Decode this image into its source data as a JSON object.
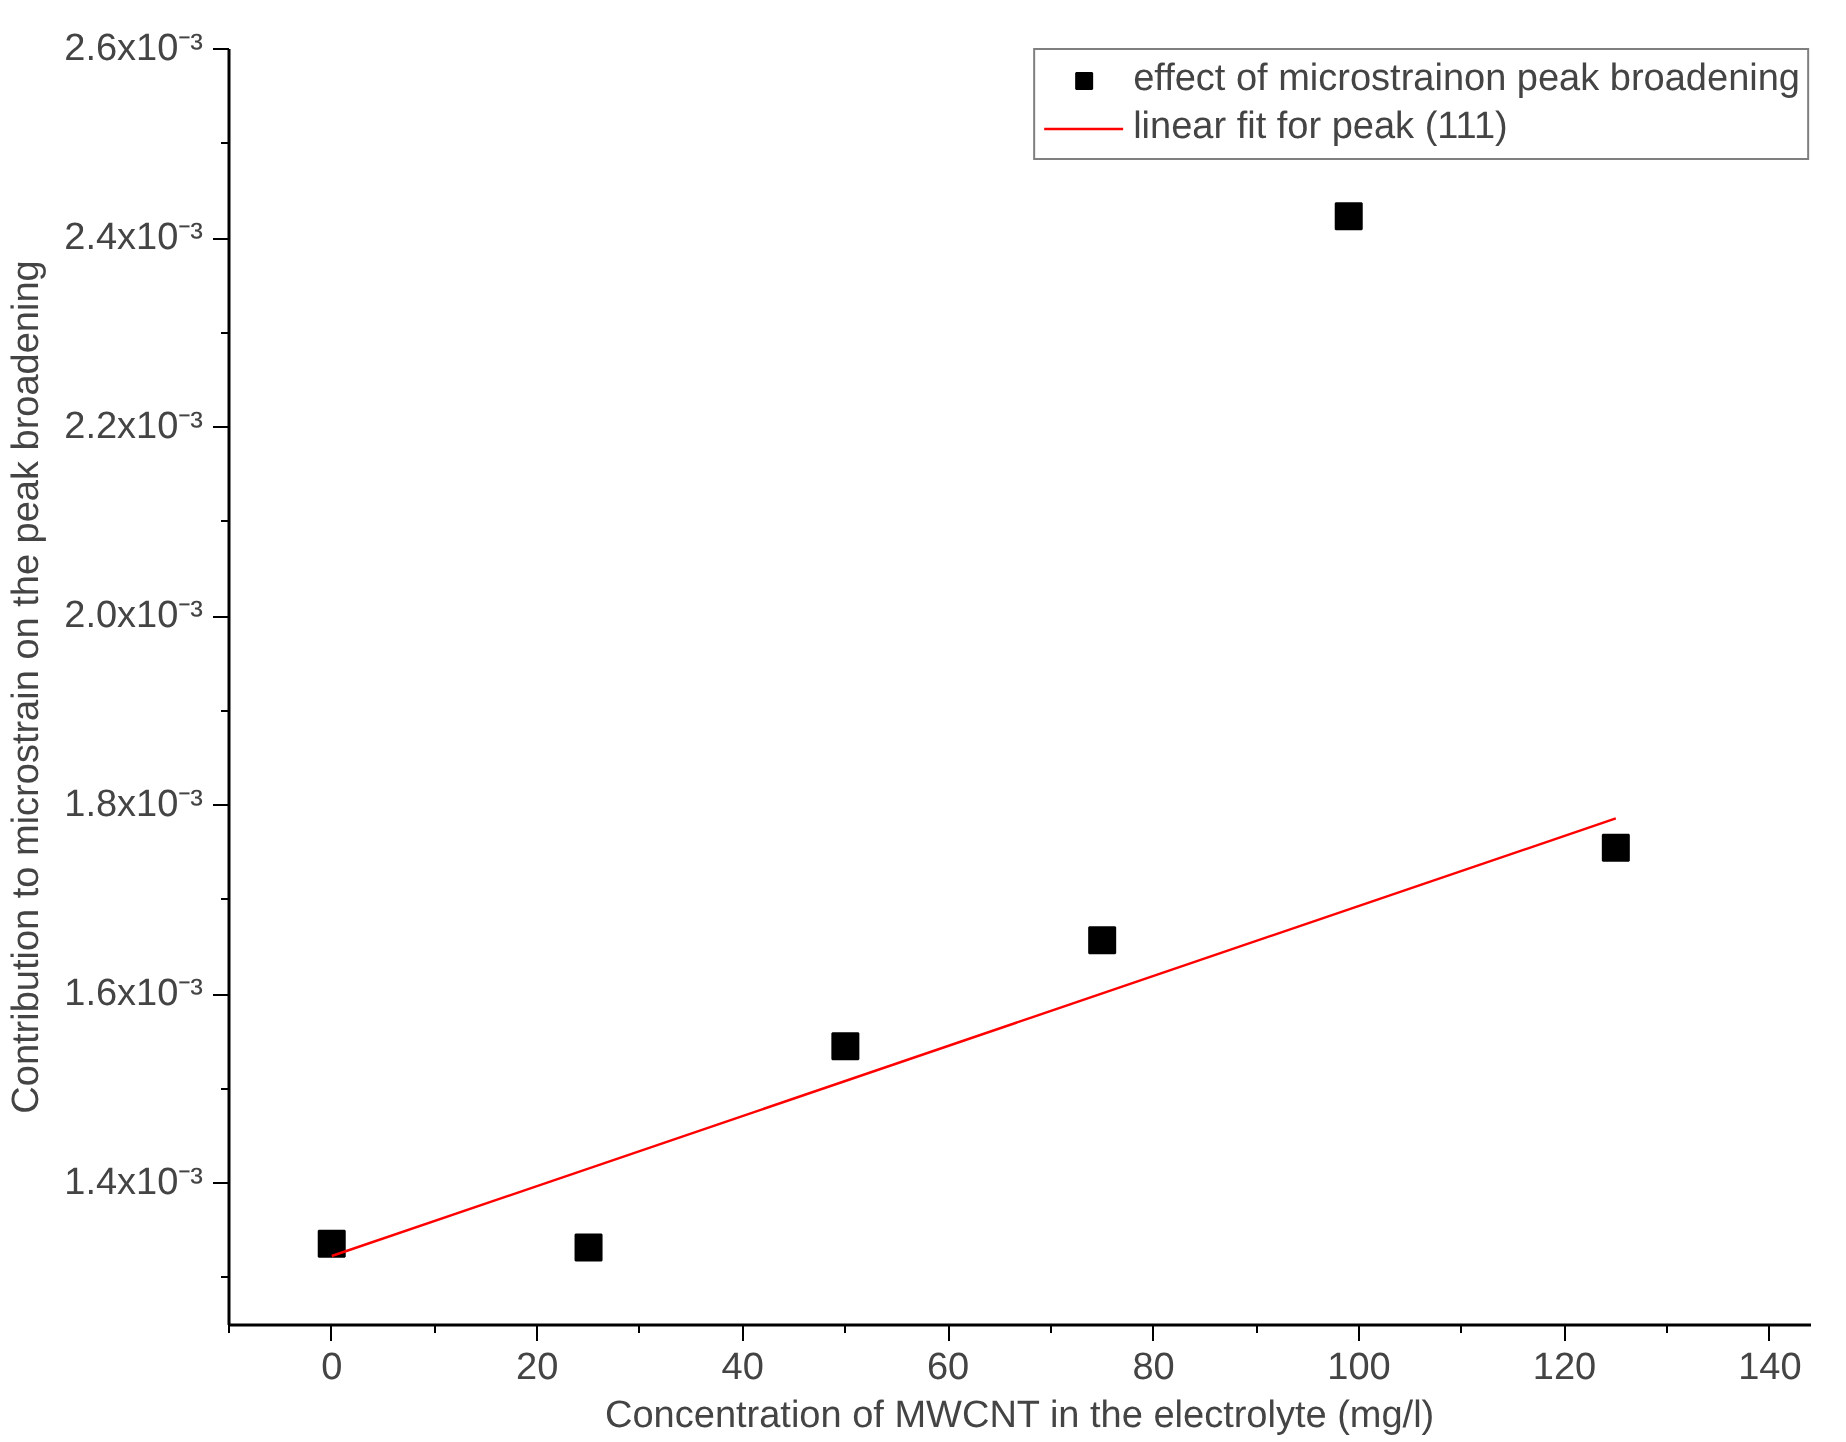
{
  "chart_data": {
    "type": "scatter",
    "xlabel": "Concentration of MWCNT in the electrolyte (mg/l)",
    "ylabel": "Contribution to microstrain on the peak broadening",
    "series": [
      {
        "name": "effect of microstrainon peak broadening",
        "color": "#000000",
        "marker": "square",
        "x": [
          0,
          25,
          50,
          75,
          99,
          125
        ],
        "values": [
          0.001336,
          0.001332,
          0.001545,
          0.001657,
          0.002423,
          0.001755
        ]
      },
      {
        "name": "linear fit for peak (111)",
        "type": "line",
        "color": "#ff0000",
        "marker": "none",
        "x": [
          0,
          125
        ],
        "values": [
          0.001323,
          0.001786
        ]
      }
    ],
    "xlim": [
      -10,
      144
    ],
    "xticks": [
      0,
      20,
      40,
      60,
      80,
      100,
      120,
      140
    ],
    "ylim": [
      0.00125,
      0.0026
    ],
    "yticks": [
      {
        "value": 0.0014,
        "label": "1.4x10⁻³"
      },
      {
        "value": 0.0016,
        "label": "1.6x10⁻³"
      },
      {
        "value": 0.0018,
        "label": "1.8x10⁻³"
      },
      {
        "value": 0.002,
        "label": "2.0x10⁻³"
      },
      {
        "value": 0.0022,
        "label": "2.2x10⁻³"
      },
      {
        "value": 0.0024,
        "label": "2.4x10⁻³"
      },
      {
        "value": 0.0026,
        "label": "2.6x10⁻³"
      }
    ],
    "grid": false,
    "legend": "top right"
  }
}
